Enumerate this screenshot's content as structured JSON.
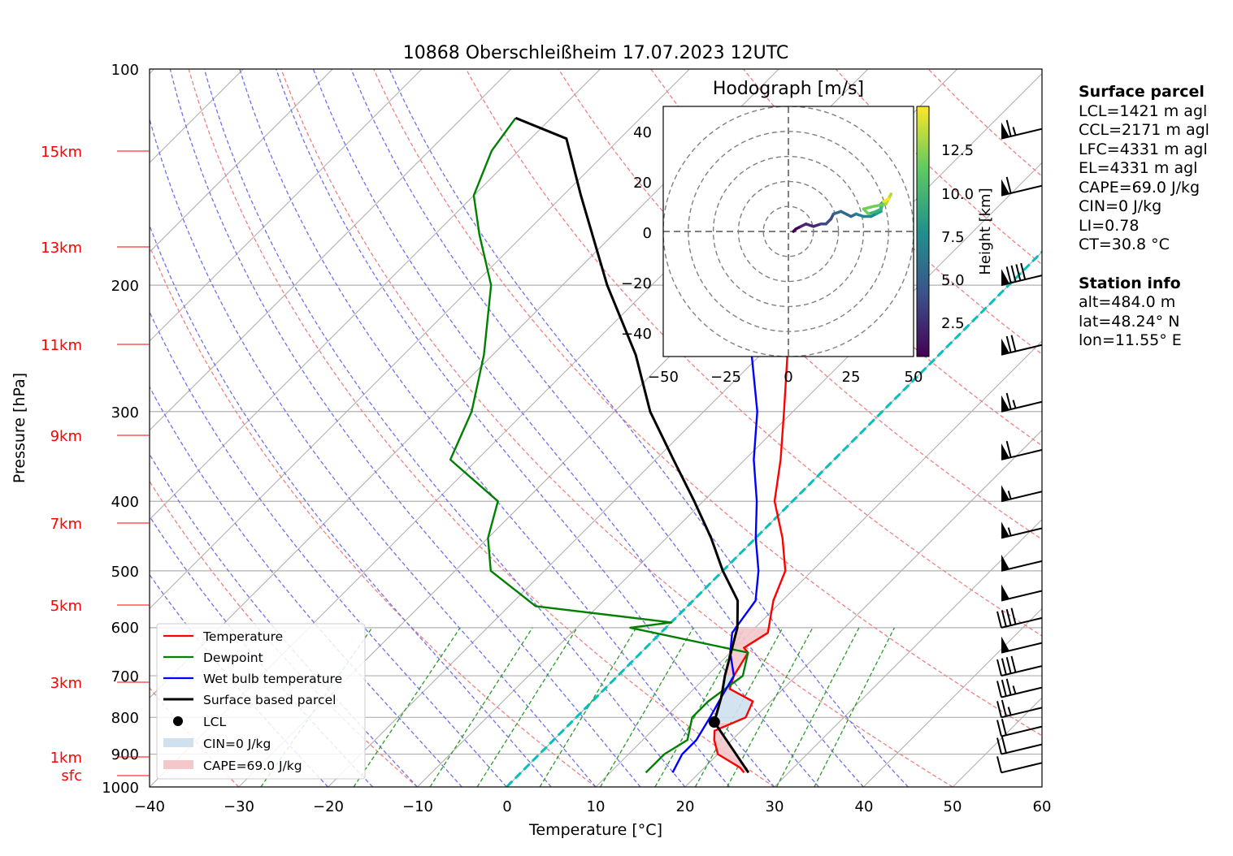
{
  "title": "10868 Oberschleißheim 17.07.2023 12UTC",
  "xlabel": "Temperature [°C]",
  "ylabel": "Pressure [hPa]",
  "x_ticks": [
    "−40",
    "−30",
    "−20",
    "−10",
    "0",
    "10",
    "20",
    "30",
    "40",
    "50",
    "60"
  ],
  "y_ticks": [
    "100",
    "200",
    "300",
    "400",
    "500",
    "600",
    "700",
    "800",
    "900",
    "1000"
  ],
  "height_labels": [
    "15km",
    "13km",
    "11km",
    "9km",
    "7km",
    "5km",
    "3km",
    "1km",
    "sfc"
  ],
  "legend": {
    "temperature": "Temperature",
    "dewpoint": "Dewpoint",
    "wetbulb": "Wet bulb temperature",
    "parcel": "Surface based parcel",
    "lcl": "LCL",
    "cin": "CIN=0 J/kg",
    "cape": "CAPE=69.0 J/kg"
  },
  "hodograph": {
    "title": "Hodograph [m/s]",
    "x_ticks": [
      "−50",
      "−25",
      "0",
      "25",
      "50"
    ],
    "y_ticks": [
      "40",
      "20",
      "0",
      "−20",
      "−40"
    ],
    "colorbar_label": "Height [km]",
    "colorbar_ticks": [
      "12.5",
      "10.0",
      "7.5",
      "5.0",
      "2.5"
    ]
  },
  "surface_parcel": {
    "heading": "Surface parcel",
    "lines": [
      "LCL=1421 m agl",
      "CCL=2171 m agl",
      "LFC=4331 m agl",
      "EL=4331 m agl",
      "CAPE=69.0 J/kg",
      "CIN=0 J/kg",
      "LI=0.78",
      "CT=30.8 °C"
    ]
  },
  "station_info": {
    "heading": "Station info",
    "lines": [
      "alt=484.0 m",
      "lat=48.24° N",
      "lon=11.55° E"
    ]
  },
  "colors": {
    "temperature": "#ff0000",
    "dewpoint": "#008000",
    "wetbulb": "#0000ff",
    "parcel": "#000000",
    "cape_fill": "#f4c8cb",
    "cin_fill": "#cfe0ee",
    "dry_adiabat": "#f08080",
    "moist_adiabat": "#7070ee",
    "mixing_ratio": "#2a9a2a",
    "freezing_level": "#00c0c0"
  },
  "chart_data": {
    "type": "line",
    "xlim": [
      -40,
      60
    ],
    "ylim": [
      1000,
      100
    ],
    "yscale": "log",
    "skew": "isotherms skewed 45°",
    "series": [
      {
        "name": "Temperature",
        "points": [
          [
            25,
            955
          ],
          [
            24,
            940
          ],
          [
            20,
            900
          ],
          [
            18,
            860
          ],
          [
            17,
            835
          ],
          [
            19,
            800
          ],
          [
            18,
            760
          ],
          [
            14,
            730
          ],
          [
            13,
            700
          ],
          [
            12,
            650
          ],
          [
            11,
            640
          ],
          [
            12,
            610
          ],
          [
            9,
            550
          ],
          [
            7,
            500
          ],
          [
            3,
            450
          ],
          [
            -2,
            400
          ],
          [
            -6,
            350
          ],
          [
            -11,
            300
          ],
          [
            -17,
            250
          ],
          [
            -23,
            220
          ],
          [
            -26,
            200
          ],
          [
            -31,
            170
          ],
          [
            -35,
            150
          ],
          [
            -39,
            130
          ],
          [
            -43,
            117
          ]
        ]
      },
      {
        "name": "Dewpoint",
        "points": [
          [
            14,
            955
          ],
          [
            14,
            900
          ],
          [
            15,
            860
          ],
          [
            13,
            800
          ],
          [
            13,
            760
          ],
          [
            14,
            700
          ],
          [
            12,
            650
          ],
          [
            -4,
            600
          ],
          [
            0,
            590
          ],
          [
            -17,
            560
          ],
          [
            -26,
            500
          ],
          [
            -30,
            450
          ],
          [
            -33,
            400
          ],
          [
            -43,
            350
          ],
          [
            -46,
            300
          ],
          [
            -51,
            250
          ],
          [
            -58,
            200
          ],
          [
            -65,
            170
          ],
          [
            -70,
            150
          ],
          [
            -73,
            130
          ],
          [
            -74,
            117
          ]
        ]
      },
      {
        "name": "Wet bulb temperature",
        "points": [
          [
            17,
            955
          ],
          [
            16,
            900
          ],
          [
            16,
            860
          ],
          [
            15,
            800
          ],
          [
            14,
            750
          ],
          [
            13,
            700
          ],
          [
            10,
            650
          ],
          [
            8,
            610
          ],
          [
            7,
            550
          ],
          [
            4,
            500
          ],
          [
            0,
            450
          ],
          [
            -4,
            400
          ],
          [
            -9,
            350
          ],
          [
            -14,
            300
          ],
          [
            -21,
            250
          ],
          [
            -26,
            220
          ],
          [
            -28,
            200
          ],
          [
            -32,
            170
          ],
          [
            -36,
            150
          ],
          [
            -39,
            130
          ],
          [
            -44,
            117
          ]
        ]
      },
      {
        "name": "Surface based parcel",
        "points": [
          [
            25.5,
            955
          ],
          [
            16,
            812
          ],
          [
            14,
            750
          ],
          [
            12,
            700
          ],
          [
            8,
            600
          ],
          [
            5,
            550
          ],
          [
            0,
            500
          ],
          [
            -5,
            450
          ],
          [
            -11,
            400
          ],
          [
            -18,
            350
          ],
          [
            -26,
            300
          ],
          [
            -34,
            250
          ],
          [
            -45,
            200
          ],
          [
            -58,
            150
          ],
          [
            -66,
            125
          ],
          [
            -74,
            117
          ]
        ]
      }
    ],
    "lcl": {
      "temperature": 16,
      "pressure": 812
    },
    "cape_j_kg": 69.0,
    "cin_j_kg": 0,
    "grid": true,
    "legend_position": "lower-left",
    "winds": [
      {
        "pressure": 955,
        "speed_kt": 10
      },
      {
        "pressure": 900,
        "speed_kt": 20
      },
      {
        "pressure": 850,
        "speed_kt": 20
      },
      {
        "pressure": 800,
        "speed_kt": 25
      },
      {
        "pressure": 750,
        "speed_kt": 35
      },
      {
        "pressure": 700,
        "speed_kt": 40
      },
      {
        "pressure": 650,
        "speed_kt": 50
      },
      {
        "pressure": 600,
        "speed_kt": 40
      },
      {
        "pressure": 550,
        "speed_kt": 50
      },
      {
        "pressure": 500,
        "speed_kt": 50
      },
      {
        "pressure": 450,
        "speed_kt": 55
      },
      {
        "pressure": 400,
        "speed_kt": 55
      },
      {
        "pressure": 350,
        "speed_kt": 60
      },
      {
        "pressure": 300,
        "speed_kt": 65
      },
      {
        "pressure": 250,
        "speed_kt": 70
      },
      {
        "pressure": 200,
        "speed_kt": 90
      },
      {
        "pressure": 150,
        "speed_kt": 60
      },
      {
        "pressure": 125,
        "speed_kt": 65
      }
    ],
    "hodograph_points": [
      [
        2,
        0,
        0.5
      ],
      [
        3,
        1,
        1.0
      ],
      [
        5,
        2,
        1.5
      ],
      [
        7,
        3,
        2.0
      ],
      [
        10,
        2,
        2.5
      ],
      [
        13,
        3,
        3.0
      ],
      [
        15,
        3,
        3.5
      ],
      [
        17,
        5,
        4.0
      ],
      [
        18,
        7,
        4.5
      ],
      [
        21,
        8,
        5.0
      ],
      [
        25,
        6,
        5.5
      ],
      [
        27,
        7,
        6.0
      ],
      [
        30,
        6,
        6.5
      ],
      [
        33,
        6,
        7.0
      ],
      [
        35,
        7,
        7.5
      ],
      [
        37,
        8,
        8.0
      ],
      [
        37,
        11,
        8.5
      ],
      [
        38,
        12,
        9.0
      ],
      [
        37,
        9,
        9.5
      ],
      [
        35,
        8,
        10.0
      ],
      [
        32,
        7,
        10.5
      ],
      [
        30,
        9,
        11.0
      ],
      [
        34,
        10,
        11.5
      ],
      [
        39,
        11,
        12.0
      ],
      [
        40,
        13,
        12.5
      ],
      [
        41,
        15,
        13.0
      ],
      [
        40,
        13,
        13.5
      ],
      [
        38,
        12,
        14.0
      ]
    ]
  }
}
